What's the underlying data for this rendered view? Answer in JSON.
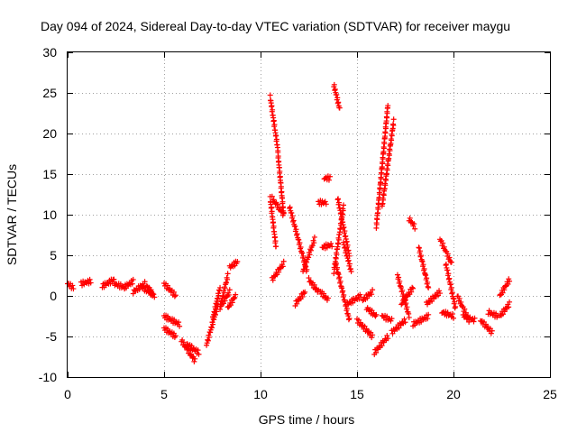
{
  "chart_data": {
    "type": "scatter",
    "title": "Day 094 of 2024, Sidereal Day-to-day VTEC variation (SDTVAR) for receiver maygu",
    "xlabel": "GPS time / hours",
    "ylabel": "SDTVAR / TECUs",
    "xlim": [
      0,
      25
    ],
    "ylim": [
      -10,
      30
    ],
    "xticks": [
      0,
      5,
      10,
      15,
      20,
      25
    ],
    "yticks": [
      -10,
      -5,
      0,
      5,
      10,
      15,
      20,
      25,
      30
    ],
    "grid": true,
    "marker": "plus",
    "series": [
      {
        "name": "SDTVAR",
        "color": "#ff0000",
        "segments": [
          {
            "x": [
              0.0,
              0.3
            ],
            "y": [
              1.5,
              1.0
            ]
          },
          {
            "x": [
              0.7,
              1.2
            ],
            "y": [
              1.5,
              1.8
            ]
          },
          {
            "x": [
              1.8,
              2.4
            ],
            "y": [
              1.2,
              2.0
            ]
          },
          {
            "x": [
              2.4,
              3.0
            ],
            "y": [
              1.5,
              1.0
            ]
          },
          {
            "x": [
              2.9,
              3.4
            ],
            "y": [
              1.0,
              1.8
            ]
          },
          {
            "x": [
              3.4,
              4.0
            ],
            "y": [
              0.5,
              1.5
            ]
          },
          {
            "x": [
              3.9,
              4.4
            ],
            "y": [
              1.0,
              0.2
            ]
          },
          {
            "x": [
              4.1,
              4.5
            ],
            "y": [
              1.2,
              0.0
            ]
          },
          {
            "x": [
              5.0,
              5.6
            ],
            "y": [
              1.5,
              0.0
            ]
          },
          {
            "x": [
              5.0,
              5.8
            ],
            "y": [
              -2.5,
              -3.5
            ]
          },
          {
            "x": [
              5.0,
              5.6
            ],
            "y": [
              -4.0,
              -5.0
            ]
          },
          {
            "x": [
              5.9,
              6.6
            ],
            "y": [
              -5.5,
              -8.0
            ]
          },
          {
            "x": [
              6.2,
              6.8
            ],
            "y": [
              -6.0,
              -7.0
            ]
          },
          {
            "x": [
              7.2,
              7.8
            ],
            "y": [
              -6.0,
              -1.0
            ]
          },
          {
            "x": [
              7.5,
              7.9
            ],
            "y": [
              -3.0,
              1.0
            ]
          },
          {
            "x": [
              7.9,
              8.3
            ],
            "y": [
              -1.5,
              2.5
            ]
          },
          {
            "x": [
              8.0,
              8.4
            ],
            "y": [
              -1.0,
              0.5
            ]
          },
          {
            "x": [
              8.4,
              8.8
            ],
            "y": [
              3.5,
              4.2
            ]
          },
          {
            "x": [
              8.3,
              8.7
            ],
            "y": [
              -1.5,
              0.0
            ]
          },
          {
            "x": [
              10.5,
              10.9
            ],
            "y": [
              24.5,
              18.0
            ]
          },
          {
            "x": [
              10.9,
              11.2
            ],
            "y": [
              17.5,
              10.0
            ]
          },
          {
            "x": [
              10.5,
              10.8
            ],
            "y": [
              12.0,
              6.0
            ]
          },
          {
            "x": [
              10.6,
              11.2
            ],
            "y": [
              12.0,
              10.0
            ]
          },
          {
            "x": [
              10.6,
              11.2
            ],
            "y": [
              2.0,
              4.0
            ]
          },
          {
            "x": [
              11.5,
              12.4
            ],
            "y": [
              11.0,
              3.0
            ]
          },
          {
            "x": [
              11.8,
              12.3
            ],
            "y": [
              -1.0,
              0.5
            ]
          },
          {
            "x": [
              12.2,
              12.8
            ],
            "y": [
              3.0,
              7.0
            ]
          },
          {
            "x": [
              12.5,
              13.0
            ],
            "y": [
              2.0,
              0.5
            ]
          },
          {
            "x": [
              13.0,
              13.4
            ],
            "y": [
              11.5,
              11.5
            ]
          },
          {
            "x": [
              13.2,
              13.7
            ],
            "y": [
              6.0,
              6.3
            ]
          },
          {
            "x": [
              13.1,
              13.5
            ],
            "y": [
              0.5,
              -0.5
            ]
          },
          {
            "x": [
              13.3,
              13.6
            ],
            "y": [
              14.5,
              14.5
            ]
          },
          {
            "x": [
              13.8,
              14.1
            ],
            "y": [
              26.0,
              23.0
            ]
          },
          {
            "x": [
              13.8,
              14.3
            ],
            "y": [
              3.0,
              11.0
            ]
          },
          {
            "x": [
              14.0,
              14.6
            ],
            "y": [
              12.0,
              5.0
            ]
          },
          {
            "x": [
              13.9,
              14.6
            ],
            "y": [
              4.0,
              -3.0
            ]
          },
          {
            "x": [
              14.3,
              14.7
            ],
            "y": [
              6.5,
              3.0
            ]
          },
          {
            "x": [
              14.5,
              15.2
            ],
            "y": [
              -1.0,
              0.0
            ]
          },
          {
            "x": [
              15.0,
              15.8
            ],
            "y": [
              -3.0,
              -5.0
            ]
          },
          {
            "x": [
              15.3,
              15.8
            ],
            "y": [
              -0.5,
              0.5
            ]
          },
          {
            "x": [
              15.5,
              16.0
            ],
            "y": [
              -1.5,
              -2.5
            ]
          },
          {
            "x": [
              16.0,
              16.6
            ],
            "y": [
              8.5,
              23.5
            ]
          },
          {
            "x": [
              16.3,
              16.9
            ],
            "y": [
              11.0,
              21.5
            ]
          },
          {
            "x": [
              15.9,
              16.6
            ],
            "y": [
              -7.0,
              -5.0
            ]
          },
          {
            "x": [
              16.3,
              16.8
            ],
            "y": [
              -2.5,
              -3.0
            ]
          },
          {
            "x": [
              16.8,
              17.5
            ],
            "y": [
              -4.5,
              -3.0
            ]
          },
          {
            "x": [
              17.1,
              17.7
            ],
            "y": [
              2.5,
              -2.5
            ]
          },
          {
            "x": [
              17.3,
              17.9
            ],
            "y": [
              -1.0,
              1.0
            ]
          },
          {
            "x": [
              17.7,
              18.0
            ],
            "y": [
              9.5,
              8.5
            ]
          },
          {
            "x": [
              17.9,
              18.7
            ],
            "y": [
              -3.5,
              -2.5
            ]
          },
          {
            "x": [
              18.2,
              18.7
            ],
            "y": [
              6.0,
              1.0
            ]
          },
          {
            "x": [
              18.6,
              19.3
            ],
            "y": [
              -1.0,
              0.5
            ]
          },
          {
            "x": [
              19.3,
              19.9
            ],
            "y": [
              7.0,
              4.0
            ]
          },
          {
            "x": [
              19.4,
              20.0
            ],
            "y": [
              -2.0,
              -2.5
            ]
          },
          {
            "x": [
              19.6,
              20.1
            ],
            "y": [
              4.0,
              -1.5
            ]
          },
          {
            "x": [
              20.2,
              20.8
            ],
            "y": [
              0.0,
              -3.0
            ]
          },
          {
            "x": [
              20.5,
              21.1
            ],
            "y": [
              -2.5,
              -3.0
            ]
          },
          {
            "x": [
              21.4,
              22.0
            ],
            "y": [
              -3.0,
              -4.5
            ]
          },
          {
            "x": [
              21.8,
              22.3
            ],
            "y": [
              -2.0,
              -2.5
            ]
          },
          {
            "x": [
              22.4,
              22.9
            ],
            "y": [
              0.0,
              2.0
            ]
          },
          {
            "x": [
              22.4,
              22.9
            ],
            "y": [
              -2.5,
              -1.0
            ]
          }
        ]
      }
    ]
  }
}
